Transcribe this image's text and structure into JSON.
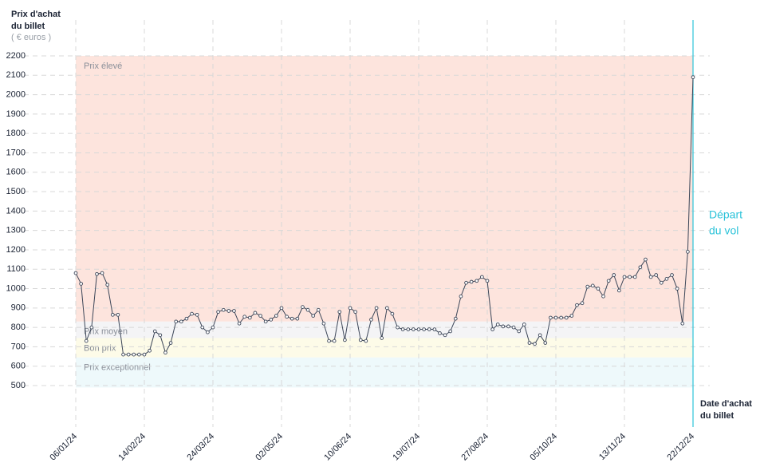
{
  "chart_data": {
    "type": "line",
    "y_label": [
      "Prix d'achat",
      "du billet"
    ],
    "y_unit": "( € euros )",
    "x_label": [
      "Date d'achat",
      "du billet"
    ],
    "annotation": {
      "lines": [
        "Départ",
        "du vol"
      ],
      "color": "#2cc3d9"
    },
    "xlim": [
      0,
      117
    ],
    "xticks": [
      {
        "value": 0,
        "label": "06/01/24"
      },
      {
        "value": 13,
        "label": "14/02/24"
      },
      {
        "value": 26,
        "label": "24/03/24"
      },
      {
        "value": 39,
        "label": "02/05/24"
      },
      {
        "value": 52,
        "label": "10/06/24"
      },
      {
        "value": 65,
        "label": "19/07/24"
      },
      {
        "value": 78,
        "label": "27/08/24"
      },
      {
        "value": 91,
        "label": "05/10/24"
      },
      {
        "value": 104,
        "label": "13/11/24"
      },
      {
        "value": 117,
        "label": "22/12/24"
      }
    ],
    "ylim": [
      500,
      2200
    ],
    "yticks": [
      500,
      600,
      700,
      800,
      900,
      1000,
      1100,
      1200,
      1300,
      1400,
      1500,
      1600,
      1700,
      1800,
      1900,
      2000,
      2100,
      2200
    ],
    "grid": true,
    "bands": [
      {
        "label": "Prix élevé",
        "from": 830,
        "to": 2200,
        "color": "#fde4dd"
      },
      {
        "label": "Prix moyen",
        "from": 745,
        "to": 830,
        "color": "#f4f4f6"
      },
      {
        "label": "Bon prix",
        "from": 645,
        "to": 745,
        "color": "#fdfbe8"
      },
      {
        "label": "Prix exceptionnel",
        "from": 490,
        "to": 645,
        "color": "#eef9fb"
      }
    ],
    "series": [
      {
        "color": "#3c4658",
        "values": [
          1080,
          1025,
          730,
          800,
          1075,
          1080,
          1020,
          865,
          865,
          660,
          660,
          660,
          660,
          660,
          680,
          780,
          760,
          670,
          720,
          830,
          830,
          845,
          870,
          865,
          800,
          775,
          800,
          880,
          890,
          885,
          885,
          820,
          855,
          850,
          875,
          860,
          830,
          840,
          860,
          900,
          855,
          845,
          845,
          905,
          890,
          860,
          890,
          820,
          730,
          730,
          880,
          735,
          900,
          880,
          735,
          730,
          840,
          900,
          745,
          900,
          870,
          800,
          790,
          790,
          790,
          790,
          790,
          790,
          790,
          770,
          760,
          780,
          845,
          960,
          1030,
          1035,
          1040,
          1060,
          1040,
          790,
          815,
          805,
          805,
          800,
          780,
          815,
          720,
          715,
          760,
          720,
          850,
          850,
          850,
          850,
          860,
          915,
          925,
          1010,
          1015,
          1000,
          960,
          1040,
          1070,
          990,
          1060,
          1060,
          1060,
          1110,
          1150,
          1060,
          1070,
          1030,
          1050,
          1070,
          1000,
          820,
          1190,
          2090
        ]
      }
    ]
  }
}
